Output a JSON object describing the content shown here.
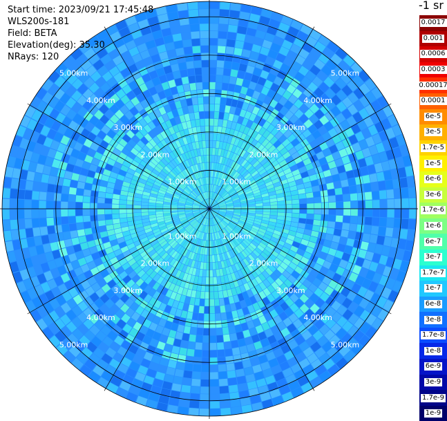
{
  "header": {
    "start_time": "Start time: 2023/09/21 17:45:48",
    "instrument": "WLS200s-181",
    "field": "Field: BETA",
    "elevation": "Elevation(deg): 35.30",
    "nrays": "NRays: 120"
  },
  "plot": {
    "n_rays": 120,
    "max_range_km": 5.4,
    "range_rings_km": [
      1,
      2,
      3,
      4,
      5
    ],
    "ring_labels": [
      "1.00km",
      "2.00km",
      "3.00km",
      "4.00km",
      "5.00km"
    ],
    "spoke_count": 12
  },
  "colorbar": {
    "unit": "-1 sr",
    "labels": [
      "0.0017",
      "0.001",
      "0.0006",
      "0.0003",
      "0.00017",
      "0.0001",
      "6e-5",
      "3e-5",
      "1.7e-5",
      "1e-5",
      "6e-6",
      "3e-6",
      "1.7e-6",
      "1e-6",
      "6e-7",
      "3e-7",
      "1.7e-7",
      "1e-7",
      "6e-8",
      "3e-8",
      "1.7e-8",
      "1e-8",
      "6e-9",
      "3e-9",
      "1.7e-9",
      "1e-9"
    ],
    "colors": [
      "#8b0000",
      "#b00000",
      "#d40000",
      "#f00000",
      "#ff3000",
      "#ff6000",
      "#ff8c00",
      "#ffb000",
      "#ffd200",
      "#fff000",
      "#e6ff1a",
      "#c8ff3c",
      "#a0ff60",
      "#7cff84",
      "#50ffaa",
      "#2cffd0",
      "#1ae6f0",
      "#20c8ff",
      "#1a9cff",
      "#1070ff",
      "#0a4cff",
      "#0628e8",
      "#0414c8",
      "#0008a8",
      "#000488",
      "#00006a"
    ]
  }
}
